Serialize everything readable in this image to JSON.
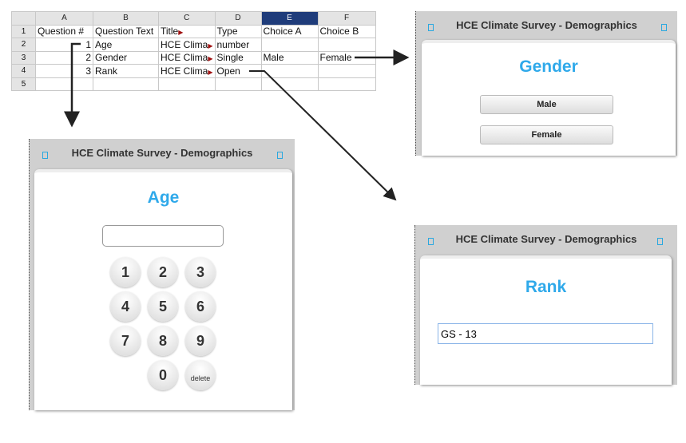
{
  "spreadsheet": {
    "columns": [
      "A",
      "B",
      "C",
      "D",
      "E",
      "F"
    ],
    "selected_column": "E",
    "rows": [
      {
        "n": "1",
        "cells": [
          "Question #",
          "Question Text",
          "Title",
          "Type",
          "Choice A",
          "Choice B"
        ]
      },
      {
        "n": "2",
        "cells": [
          "1",
          "Age",
          "HCE Clima",
          "number",
          "",
          ""
        ]
      },
      {
        "n": "3",
        "cells": [
          "2",
          "Gender",
          "HCE Clima",
          "Single",
          "Male",
          "Female"
        ]
      },
      {
        "n": "4",
        "cells": [
          "3",
          "Rank",
          "HCE Clima",
          "Open",
          "",
          ""
        ]
      },
      {
        "n": "5",
        "cells": [
          "",
          "",
          "",
          "",
          "",
          ""
        ]
      }
    ]
  },
  "app_title": "HCE Climate Survey - Demographics",
  "gender": {
    "title": "Gender",
    "choices": [
      "Male",
      "Female"
    ]
  },
  "age": {
    "title": "Age",
    "value": "",
    "keys": [
      "1",
      "2",
      "3",
      "4",
      "5",
      "6",
      "7",
      "8",
      "9",
      "0"
    ],
    "delete_label": "delete"
  },
  "rank": {
    "title": "Rank",
    "value": "GS - 13"
  },
  "colors": {
    "accent": "#2fa9ea",
    "titlebar": "#d0d0d0",
    "selected_column": "#1f3c7a"
  }
}
